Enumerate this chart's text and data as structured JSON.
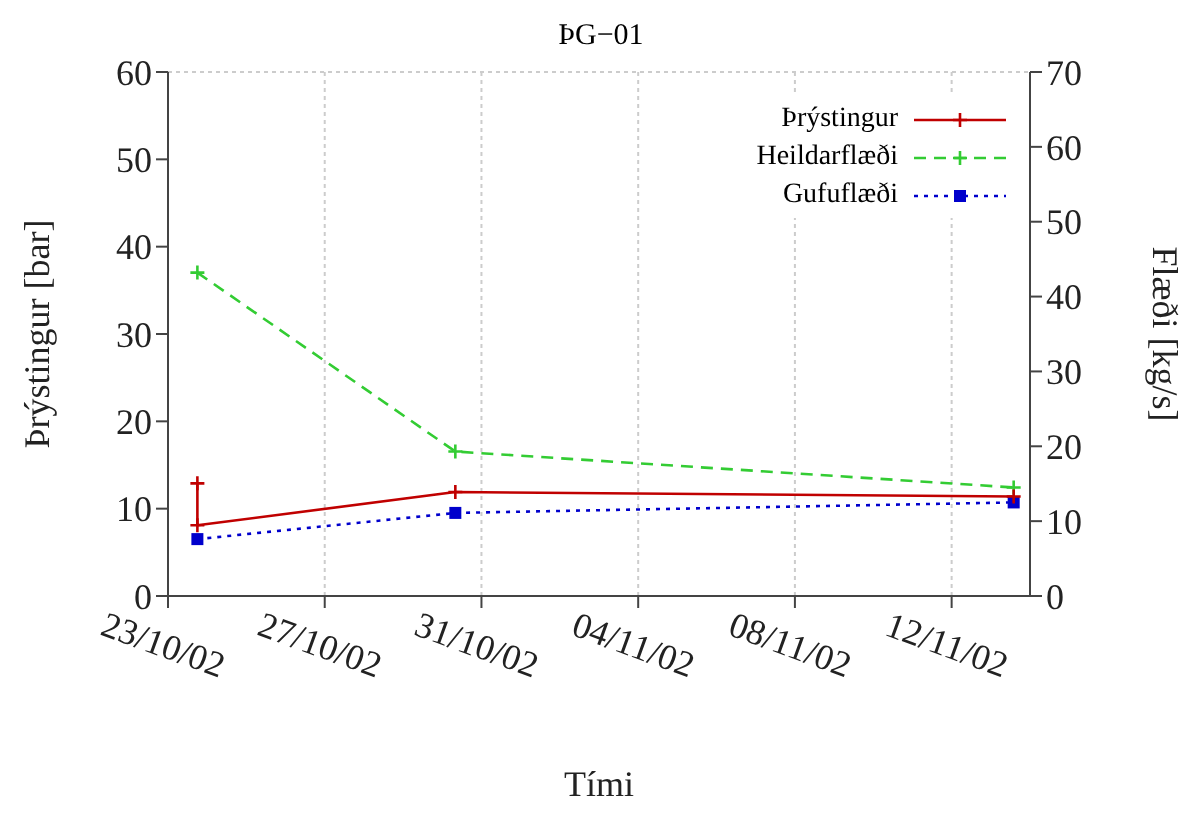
{
  "chart_data": {
    "type": "line",
    "title": "ÞG−01",
    "xlabel": "Tími",
    "ylabel": "Þrýstingur [bar]",
    "y2label": "Flæði [kg/s]",
    "xlim": [
      "--10-23",
      "--11-14"
    ],
    "xticks": [
      {
        "value": "--10-23",
        "label": "23/10/02"
      },
      {
        "value": "--10-27",
        "label": "27/10/02"
      },
      {
        "value": "--10-31",
        "label": "31/10/02"
      },
      {
        "value": "--11-04",
        "label": "04/11/02"
      },
      {
        "value": "--11-08",
        "label": "08/11/02"
      },
      {
        "value": "--11-12",
        "label": "12/11/02"
      }
    ],
    "ylim": [
      0,
      60
    ],
    "yticks": [
      0,
      10,
      20,
      30,
      40,
      50,
      60
    ],
    "y2lim": [
      0,
      70
    ],
    "y2ticks": [
      0,
      10,
      20,
      30,
      40,
      50,
      60,
      70
    ],
    "grid": true,
    "legend": "top right",
    "series": [
      {
        "name": "Þrýstingur",
        "color": "#c00000",
        "marker": "cross",
        "line_style": "solid",
        "x": [
          "--10-23T18:00",
          "--10-23T18:00",
          "--10-30T08:00",
          "--11-13T14:00"
        ],
        "values": [
          12.9,
          8.1,
          11.9,
          11.4
        ]
      },
      {
        "name": "Heildarflæði",
        "color": "#33cc33",
        "marker": "cross",
        "line_style": "dashed",
        "axis": "y2",
        "x": [
          "--10-23T18:00",
          "--10-30T08:00",
          "--11-13T14:00"
        ],
        "values": [
          43.2,
          19.3,
          14.5
        ]
      },
      {
        "name": "Gufuflæði",
        "color": "#0000cc",
        "marker": "square",
        "line_style": "dotted",
        "axis": "y2",
        "x": [
          "--10-23T18:00",
          "--10-30T08:00",
          "--11-13T14:00"
        ],
        "values": [
          7.6,
          11.1,
          12.5
        ]
      }
    ]
  }
}
